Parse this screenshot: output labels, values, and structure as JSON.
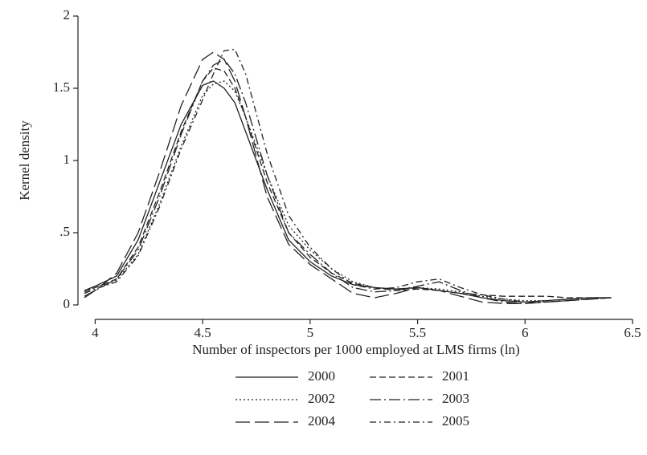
{
  "chart_data": {
    "type": "line",
    "x_label": "Number of inspectors per 1000 employed at LMS firms (ln)",
    "y_label": "Kernel density",
    "x": [
      3.95,
      4.0,
      4.1,
      4.2,
      4.3,
      4.4,
      4.5,
      4.55,
      4.6,
      4.65,
      4.7,
      4.8,
      4.9,
      5.0,
      5.1,
      5.2,
      5.3,
      5.4,
      5.5,
      5.6,
      5.7,
      5.8,
      5.9,
      6.0,
      6.1,
      6.2,
      6.3,
      6.4
    ],
    "series": [
      {
        "name": "2000",
        "color": "#222222",
        "dash": "solid",
        "values": [
          0.1,
          0.13,
          0.2,
          0.45,
          0.85,
          1.25,
          1.52,
          1.55,
          1.5,
          1.4,
          1.2,
          0.8,
          0.45,
          0.3,
          0.2,
          0.14,
          0.12,
          0.11,
          0.12,
          0.1,
          0.08,
          0.05,
          0.03,
          0.02,
          0.03,
          0.04,
          0.05,
          0.05
        ]
      },
      {
        "name": "2001",
        "color": "#222222",
        "dash": "dashed",
        "values": [
          0.09,
          0.12,
          0.18,
          0.4,
          0.78,
          1.2,
          1.55,
          1.64,
          1.62,
          1.5,
          1.3,
          0.85,
          0.5,
          0.33,
          0.22,
          0.15,
          0.12,
          0.1,
          0.11,
          0.1,
          0.08,
          0.07,
          0.06,
          0.06,
          0.06,
          0.05,
          0.05,
          0.05
        ]
      },
      {
        "name": "2002",
        "color": "#222222",
        "dash": "dotted",
        "values": [
          0.1,
          0.12,
          0.17,
          0.35,
          0.7,
          1.1,
          1.45,
          1.53,
          1.55,
          1.48,
          1.3,
          0.9,
          0.55,
          0.38,
          0.25,
          0.16,
          0.12,
          0.11,
          0.12,
          0.11,
          0.09,
          0.06,
          0.04,
          0.03,
          0.03,
          0.04,
          0.05,
          0.05
        ]
      },
      {
        "name": "2003",
        "color": "#222222",
        "dash": "longdashdot",
        "values": [
          0.06,
          0.1,
          0.18,
          0.38,
          0.75,
          1.18,
          1.55,
          1.66,
          1.7,
          1.6,
          1.4,
          0.9,
          0.5,
          0.35,
          0.22,
          0.12,
          0.09,
          0.1,
          0.13,
          0.16,
          0.1,
          0.05,
          0.02,
          0.01,
          0.02,
          0.03,
          0.04,
          0.05
        ]
      },
      {
        "name": "2004",
        "color": "#222222",
        "dash": "longdash",
        "values": [
          0.05,
          0.1,
          0.22,
          0.5,
          0.92,
          1.38,
          1.7,
          1.75,
          1.7,
          1.55,
          1.3,
          0.75,
          0.42,
          0.28,
          0.18,
          0.08,
          0.05,
          0.08,
          0.12,
          0.1,
          0.06,
          0.02,
          0.01,
          0.01,
          0.02,
          0.03,
          0.04,
          0.05
        ]
      },
      {
        "name": "2005",
        "color": "#222222",
        "dash": "dashdot",
        "values": [
          0.08,
          0.11,
          0.16,
          0.34,
          0.68,
          1.08,
          1.42,
          1.6,
          1.76,
          1.77,
          1.6,
          1.05,
          0.62,
          0.4,
          0.25,
          0.14,
          0.11,
          0.12,
          0.16,
          0.18,
          0.12,
          0.07,
          0.04,
          0.02,
          0.02,
          0.03,
          0.04,
          0.05
        ]
      }
    ],
    "xlim": [
      3.92,
      6.5
    ],
    "ylim": [
      -0.1,
      2.0
    ],
    "xticks": [
      4,
      4.5,
      5,
      5.5,
      6,
      6.5
    ],
    "yticks": [
      0,
      {
        "value": 0.5,
        "label": ".5"
      },
      1,
      1.5,
      2
    ],
    "legend": "bottom"
  }
}
